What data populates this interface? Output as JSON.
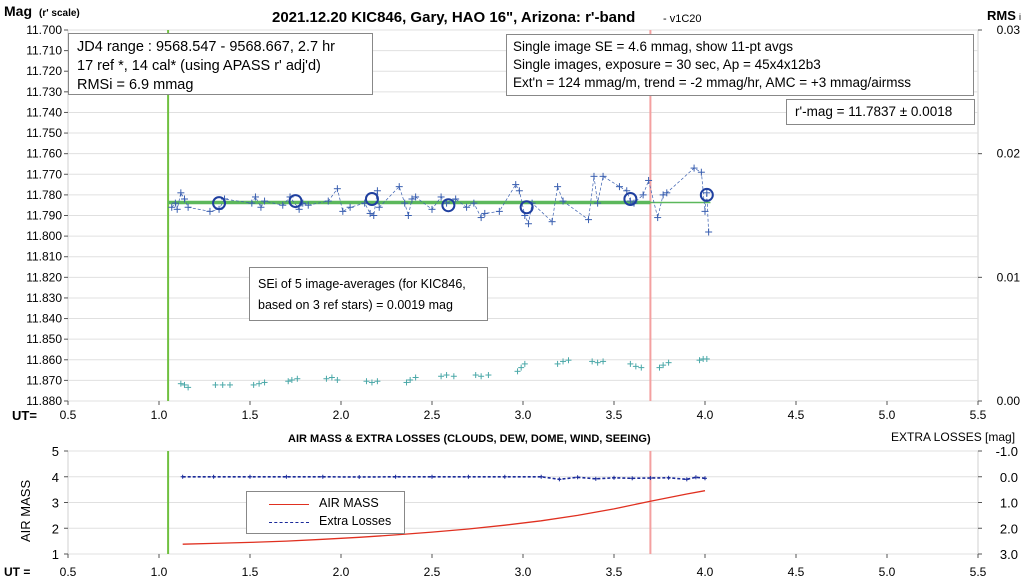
{
  "top_chart": {
    "title": "2021.12.20 KIC846, Gary, HAO 16\", Arizona: r'-band",
    "version": "- v1C20",
    "ylabel_main": "Mag",
    "ylabel_sub": "(r' scale)",
    "y2label_main": "RMS",
    "y2label_sub": "i",
    "xlabel": "UT=",
    "y_ticks": [
      "11.700",
      "11.710",
      "11.720",
      "11.730",
      "11.740",
      "11.750",
      "11.760",
      "11.770",
      "11.780",
      "11.790",
      "11.800",
      "11.810",
      "11.820",
      "11.830",
      "11.840",
      "11.850",
      "11.860",
      "11.870",
      "11.880"
    ],
    "y2_ticks": [
      "0.03",
      "0.02",
      "0.01",
      "0.00"
    ],
    "x_ticks": [
      "0.5",
      "1.0",
      "1.5",
      "2.0",
      "2.5",
      "3.0",
      "3.5",
      "4.0",
      "4.5",
      "5.0",
      "5.5"
    ]
  },
  "info_box_left": {
    "line1": "JD4 range : 9568.547 - 9568.667,  2.7  hr",
    "line2": "17 ref *, 14 cal* (using APASS r' adj'd)",
    "line3": "RMSi = 6.9 mmag"
  },
  "info_box_right": {
    "line1": "Single image SE = 4.6 mmag, show  11-pt avgs",
    "line2": "Single images, exposure = 30 sec, Ap = 45x4x12b3",
    "line3": "Ext'n = 124 mmag/m, trend = -2  mmag/hr, AMC = +3 mmag/airmss"
  },
  "rmag_box": {
    "text": "r'-mag = 11.7837 ± 0.0018"
  },
  "sei_box": {
    "line1": "SEi of 5 image-averages (for KIC846,",
    "line2": "based on 3 ref stars) = 0.0019 mag"
  },
  "bottom_chart": {
    "title": "AIR MASS & EXTRA LOSSES (CLOUDS, DEW, DOME, WIND, SEEING)",
    "ylabel": "AIR MASS",
    "y2label": "EXTRA LOSSES [mag]",
    "xlabel": "UT =",
    "y_ticks": [
      "5",
      "4",
      "3",
      "2",
      "1"
    ],
    "y2_ticks": [
      "-1.0",
      "0.0",
      "1.0",
      "2.0",
      "3.0"
    ],
    "x_ticks": [
      "0.5",
      "1.0",
      "1.5",
      "2.0",
      "2.5",
      "3.0",
      "3.5",
      "4.0",
      "4.5",
      "5.0",
      "5.5"
    ]
  },
  "legend": {
    "air_mass": "AIR MASS",
    "extra_losses": "Extra Losses"
  },
  "colors": {
    "points": "#3a5fb0",
    "averages": "#1f3f9f",
    "fit_line": "#5cb85c",
    "start_line": "#70c040",
    "end_line": "#f4a0a0",
    "rms": "#4aa8a8",
    "air_mass": "#e03020",
    "extra_losses": "#1a2a9a",
    "grid": "#e0e0e0"
  },
  "chart_data": [
    {
      "type": "scatter",
      "title": "2021.12.20 KIC846, Gary, HAO 16\", Arizona: r'-band",
      "xlabel": "UT=",
      "ylabel": "Mag (r' scale)",
      "y2label": "RMS i",
      "xlim": [
        0.5,
        5.5
      ],
      "ylim": [
        11.88,
        11.7
      ],
      "y2lim": [
        0.0,
        0.03
      ],
      "grid": true,
      "vertical_lines": {
        "start_ut": 1.05,
        "end_ut": 3.7
      },
      "fit": {
        "ut": [
          1.05,
          3.7
        ],
        "mag": [
          11.7837,
          11.7837
        ]
      },
      "trend_line": {
        "ut": [
          1.05,
          4.03
        ],
        "mag": [
          11.7837,
          11.7837
        ]
      },
      "series": [
        {
          "name": "",
          "marker": "plus",
          "ut": [
            1.07,
            1.09,
            1.1,
            1.12,
            1.14,
            1.16,
            1.28,
            1.33,
            1.36,
            1.51,
            1.53,
            1.56,
            1.58,
            1.68,
            1.72,
            1.77,
            1.79,
            1.82,
            1.93,
            1.98,
            2.01,
            2.05,
            2.13,
            2.16,
            2.18,
            2.2,
            2.21,
            2.32,
            2.35,
            2.37,
            2.39,
            2.41,
            2.5,
            2.55,
            2.58,
            2.63,
            2.69,
            2.73,
            2.77,
            2.79,
            2.87,
            2.96,
            2.98,
            3.01,
            3.03,
            3.05,
            3.16,
            3.19,
            3.22,
            3.36,
            3.39,
            3.41,
            3.44,
            3.53,
            3.57,
            3.59,
            3.61,
            3.66,
            3.69,
            3.74,
            3.77,
            3.79,
            3.94,
            3.98,
            4.0,
            4.01,
            4.02
          ],
          "mag": [
            11.786,
            11.784,
            11.787,
            11.779,
            11.782,
            11.786,
            11.788,
            11.787,
            11.782,
            11.784,
            11.781,
            11.786,
            11.783,
            11.785,
            11.781,
            11.787,
            11.784,
            11.785,
            11.783,
            11.777,
            11.788,
            11.786,
            11.784,
            11.789,
            11.79,
            11.778,
            11.786,
            11.776,
            11.784,
            11.79,
            11.782,
            11.781,
            11.787,
            11.781,
            11.784,
            11.782,
            11.786,
            11.784,
            11.791,
            11.789,
            11.788,
            11.775,
            11.778,
            11.79,
            11.794,
            11.784,
            11.793,
            11.776,
            11.783,
            11.792,
            11.771,
            11.784,
            11.771,
            11.776,
            11.778,
            11.783,
            11.784,
            11.78,
            11.773,
            11.791,
            11.78,
            11.779,
            11.767,
            11.769,
            11.788,
            11.779,
            11.798
          ]
        },
        {
          "name": "",
          "marker": "circle",
          "ut": [
            1.33,
            1.75,
            2.17,
            2.59,
            3.02,
            3.59,
            4.01
          ],
          "mag": [
            11.784,
            11.783,
            11.782,
            11.785,
            11.786,
            11.782,
            11.78
          ]
        },
        {
          "name": "",
          "marker": "plus",
          "axis": "right",
          "ut": [
            1.12,
            1.14,
            1.16,
            1.31,
            1.35,
            1.39,
            1.52,
            1.55,
            1.58,
            1.71,
            1.73,
            1.76,
            1.92,
            1.95,
            1.98,
            2.14,
            2.17,
            2.2,
            2.36,
            2.38,
            2.41,
            2.55,
            2.58,
            2.62,
            2.74,
            2.77,
            2.81,
            2.97,
            2.99,
            3.01,
            3.19,
            3.22,
            3.25,
            3.38,
            3.41,
            3.44,
            3.59,
            3.62,
            3.65,
            3.75,
            3.77,
            3.8,
            3.97,
            3.99,
            4.01
          ],
          "rms": [
            0.0014,
            0.0013,
            0.0011,
            0.0013,
            0.0013,
            0.0013,
            0.0013,
            0.0014,
            0.0015,
            0.0016,
            0.0017,
            0.0018,
            0.0018,
            0.0019,
            0.0017,
            0.0016,
            0.0015,
            0.0016,
            0.0015,
            0.0017,
            0.0019,
            0.002,
            0.0021,
            0.002,
            0.0021,
            0.002,
            0.0021,
            0.0024,
            0.0027,
            0.003,
            0.003,
            0.0032,
            0.0033,
            0.0032,
            0.0031,
            0.0032,
            0.003,
            0.0028,
            0.0027,
            0.0027,
            0.0029,
            0.0031,
            0.0033,
            0.0034,
            0.0034
          ]
        }
      ]
    },
    {
      "type": "line",
      "title": "AIR MASS & EXTRA LOSSES (CLOUDS, DEW, DOME, WIND, SEEING)",
      "xlabel": "UT =",
      "ylabel": "AIR MASS",
      "y2label": "EXTRA LOSSES [mag]",
      "xlim": [
        0.5,
        5.5
      ],
      "ylim": [
        1,
        5
      ],
      "y2lim": [
        3.0,
        -1.0
      ],
      "legend_position": "center-left",
      "vertical_lines": {
        "start_ut": 1.05,
        "end_ut": 3.7
      },
      "series": [
        {
          "name": "AIR MASS",
          "axis": "left",
          "ut": [
            1.13,
            1.3,
            1.5,
            1.7,
            1.9,
            2.1,
            2.3,
            2.5,
            2.7,
            2.9,
            3.1,
            3.3,
            3.5,
            3.7,
            3.9,
            4.0
          ],
          "values": [
            1.38,
            1.41,
            1.45,
            1.5,
            1.57,
            1.65,
            1.74,
            1.85,
            1.97,
            2.12,
            2.29,
            2.5,
            2.75,
            3.05,
            3.33,
            3.46
          ]
        },
        {
          "name": "Extra Losses",
          "axis": "right",
          "ut": [
            1.13,
            1.3,
            1.5,
            1.7,
            1.9,
            2.1,
            2.3,
            2.5,
            2.7,
            2.9,
            3.1,
            3.2,
            3.3,
            3.4,
            3.5,
            3.6,
            3.7,
            3.8,
            3.9,
            3.95,
            4.0
          ],
          "values": [
            0.0,
            0.0,
            0.0,
            0.0,
            0.0,
            0.01,
            0.0,
            0.0,
            0.0,
            0.0,
            0.0,
            0.1,
            0.02,
            0.08,
            0.04,
            0.06,
            0.05,
            0.04,
            0.1,
            0.02,
            0.06
          ]
        }
      ]
    }
  ]
}
